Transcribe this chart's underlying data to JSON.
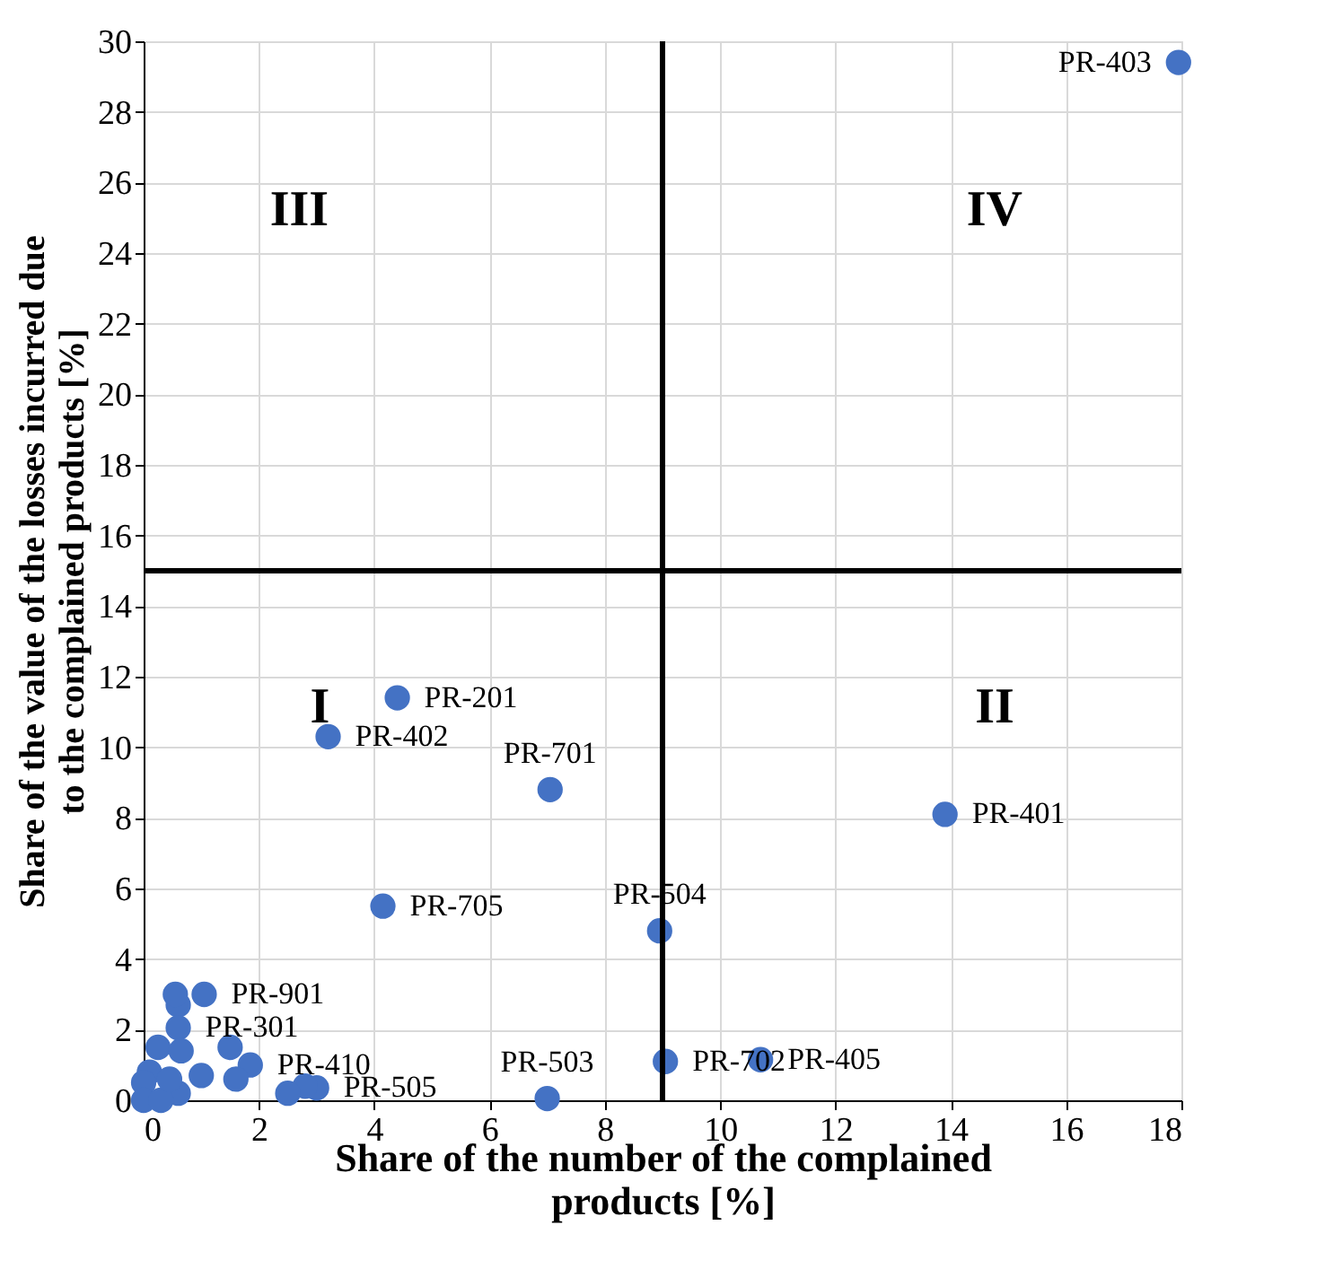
{
  "chart_data": {
    "type": "scatter",
    "xlabel": "Share of the number of the complained products [%]",
    "ylabel": "Share of the value of the losses incurred due to the complained products [%]",
    "x": [
      17.95,
      4.4,
      3.2,
      7.05,
      13.9,
      4.15,
      8.95,
      9.05,
      10.7,
      7.0,
      1.05,
      0.6,
      0.6,
      0.55,
      0.25,
      0.65,
      1.5,
      1.85,
      3.0,
      2.8,
      0.6,
      0.1,
      0.0,
      0.0,
      0.3,
      0.45,
      1.0,
      1.6,
      2.5
    ],
    "values": [
      29.4,
      11.4,
      10.3,
      8.8,
      8.1,
      5.5,
      4.8,
      1.1,
      1.15,
      0.05,
      3.0,
      2.7,
      2.05,
      3.0,
      1.5,
      1.4,
      1.5,
      1.0,
      0.35,
      0.4,
      0.2,
      0.8,
      0.5,
      0.0,
      0.0,
      0.6,
      0.7,
      0.6,
      0.2
    ],
    "value_labels": [
      "PR-403",
      "PR-201",
      "PR-402",
      "PR-701",
      "PR-401",
      "PR-705",
      "PR-504",
      "PR-702",
      "PR-405",
      "PR-503",
      "PR-901",
      null,
      "PR-301",
      null,
      null,
      null,
      null,
      "PR-410",
      "PR-505",
      null,
      null,
      null,
      null,
      null,
      null,
      null,
      null,
      null,
      null
    ],
    "color": "#4472c4",
    "marker": "circle",
    "xlim": [
      0,
      18
    ],
    "xticks": [
      0,
      2,
      4,
      6,
      8,
      10,
      12,
      14,
      16,
      18
    ],
    "ylim": [
      0,
      30
    ],
    "yticks": [
      0,
      2,
      4,
      6,
      8,
      10,
      12,
      14,
      16,
      18,
      20,
      22,
      24,
      26,
      28,
      30
    ],
    "grid": true,
    "ref_lines": [
      {
        "axis": "x",
        "value": 9,
        "color": "#000000"
      },
      {
        "axis": "y",
        "value": 15,
        "color": "#000000"
      }
    ],
    "annotations": [
      "I",
      "II",
      "III",
      "IV"
    ]
  }
}
